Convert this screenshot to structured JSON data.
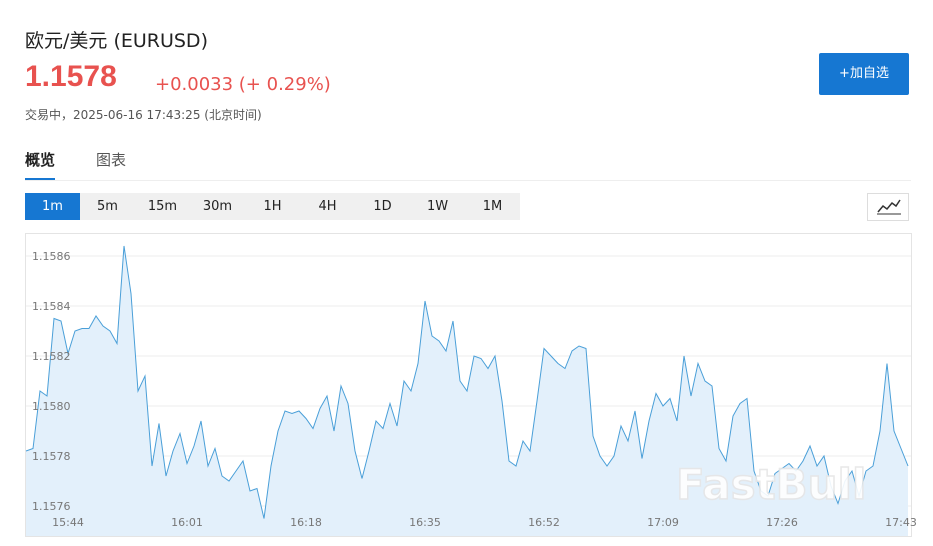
{
  "header": {
    "title": "欧元/美元  (EURUSD)",
    "price": "1.1578",
    "change": "+0.0033 (+ 0.29%)",
    "status": "交易中，2025-06-16 17:43:25 (北京时间)",
    "button": "+加自选"
  },
  "tabs": [
    "概览",
    "图表"
  ],
  "intervals": [
    "1m",
    "5m",
    "15m",
    "30m",
    "1H",
    "4H",
    "1D",
    "1W",
    "1M"
  ],
  "watermark": "FastBull",
  "chart_data": {
    "type": "area",
    "color": "#4a9fd8",
    "fill": "#e3f0fb",
    "grid": true,
    "ylim": [
      1.15748,
      1.15868
    ],
    "yticks": [
      1.1576,
      1.1578,
      {
        "value": 1.158,
        "label": "1.1580"
      },
      1.1582,
      1.1584,
      1.1586
    ],
    "categories": [
      null,
      null,
      null,
      null,
      null,
      null,
      "15:44",
      null,
      null,
      null,
      null,
      null,
      null,
      null,
      null,
      null,
      null,
      null,
      null,
      null,
      null,
      null,
      null,
      "16:01",
      null,
      null,
      null,
      null,
      null,
      null,
      null,
      null,
      null,
      null,
      null,
      null,
      null,
      null,
      null,
      null,
      "16:18",
      null,
      null,
      null,
      null,
      null,
      null,
      null,
      null,
      null,
      null,
      null,
      null,
      null,
      null,
      null,
      null,
      "16:35",
      null,
      null,
      null,
      null,
      null,
      null,
      null,
      null,
      null,
      null,
      null,
      null,
      null,
      null,
      null,
      null,
      "16:52",
      null,
      null,
      null,
      null,
      null,
      null,
      null,
      null,
      null,
      null,
      null,
      null,
      null,
      null,
      null,
      null,
      "17:09",
      null,
      null,
      null,
      null,
      null,
      null,
      null,
      null,
      null,
      null,
      null,
      null,
      null,
      null,
      null,
      null,
      "17:26",
      null,
      null,
      null,
      null,
      null,
      null,
      null,
      null,
      null,
      null,
      null,
      null,
      null,
      null,
      null,
      null,
      "17:43",
      null
    ],
    "values": [
      1.15782,
      1.15783,
      1.15806,
      1.15804,
      1.15835,
      1.15834,
      1.15821,
      1.1583,
      1.15831,
      1.15831,
      1.15836,
      1.15832,
      1.1583,
      1.15825,
      1.15864,
      1.15845,
      1.15806,
      1.15812,
      1.15776,
      1.15793,
      1.15772,
      1.15782,
      1.15789,
      1.15777,
      1.15784,
      1.15794,
      1.15776,
      1.15783,
      1.15772,
      1.1577,
      1.15774,
      1.15778,
      1.15766,
      1.15767,
      1.15755,
      1.15776,
      1.1579,
      1.15798,
      1.15797,
      1.15798,
      1.15795,
      1.15791,
      1.15799,
      1.15804,
      1.1579,
      1.15808,
      1.15801,
      1.15782,
      1.15771,
      1.15782,
      1.15794,
      1.15791,
      1.15801,
      1.15792,
      1.1581,
      1.15806,
      1.15817,
      1.15842,
      1.15828,
      1.15826,
      1.15822,
      1.15834,
      1.1581,
      1.15806,
      1.1582,
      1.15819,
      1.15815,
      1.1582,
      1.15802,
      1.15778,
      1.15776,
      1.15786,
      1.15782,
      1.15802,
      1.15823,
      1.1582,
      1.15817,
      1.15815,
      1.15822,
      1.15824,
      1.15823,
      1.15788,
      1.1578,
      1.15776,
      1.1578,
      1.15792,
      1.15786,
      1.15798,
      1.15779,
      1.15794,
      1.15805,
      1.158,
      1.15803,
      1.15794,
      1.1582,
      1.15804,
      1.15817,
      1.1581,
      1.15808,
      1.15783,
      1.15778,
      1.15796,
      1.15801,
      1.15803,
      1.15774,
      1.15766,
      1.15764,
      1.15773,
      1.15775,
      1.15777,
      1.15774,
      1.15778,
      1.15784,
      1.15776,
      1.1578,
      1.15768,
      1.15761,
      1.1577,
      1.15774,
      1.15764,
      1.15774,
      1.15776,
      1.1579,
      1.15817,
      1.1579,
      1.15783,
      1.15776
    ]
  }
}
